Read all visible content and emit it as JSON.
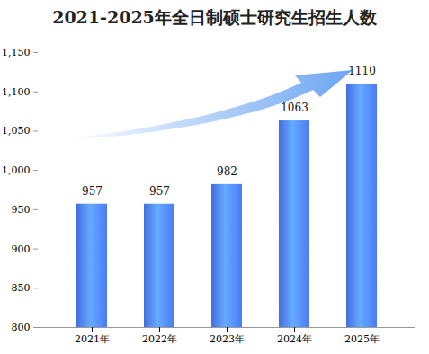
{
  "chart_data": {
    "type": "bar",
    "title": "2021-2025年全日制硕士研究生招生人数",
    "categories": [
      "2021年",
      "2022年",
      "2023年",
      "2024年",
      "2025年"
    ],
    "values": [
      957,
      957,
      982,
      1063,
      1110
    ],
    "color": "#4a7bf7",
    "ylim": [
      800,
      1150
    ],
    "yticks": [
      800,
      850,
      900,
      950,
      1000,
      1050,
      1100,
      1150
    ],
    "grid": false,
    "data_labels": true
  }
}
